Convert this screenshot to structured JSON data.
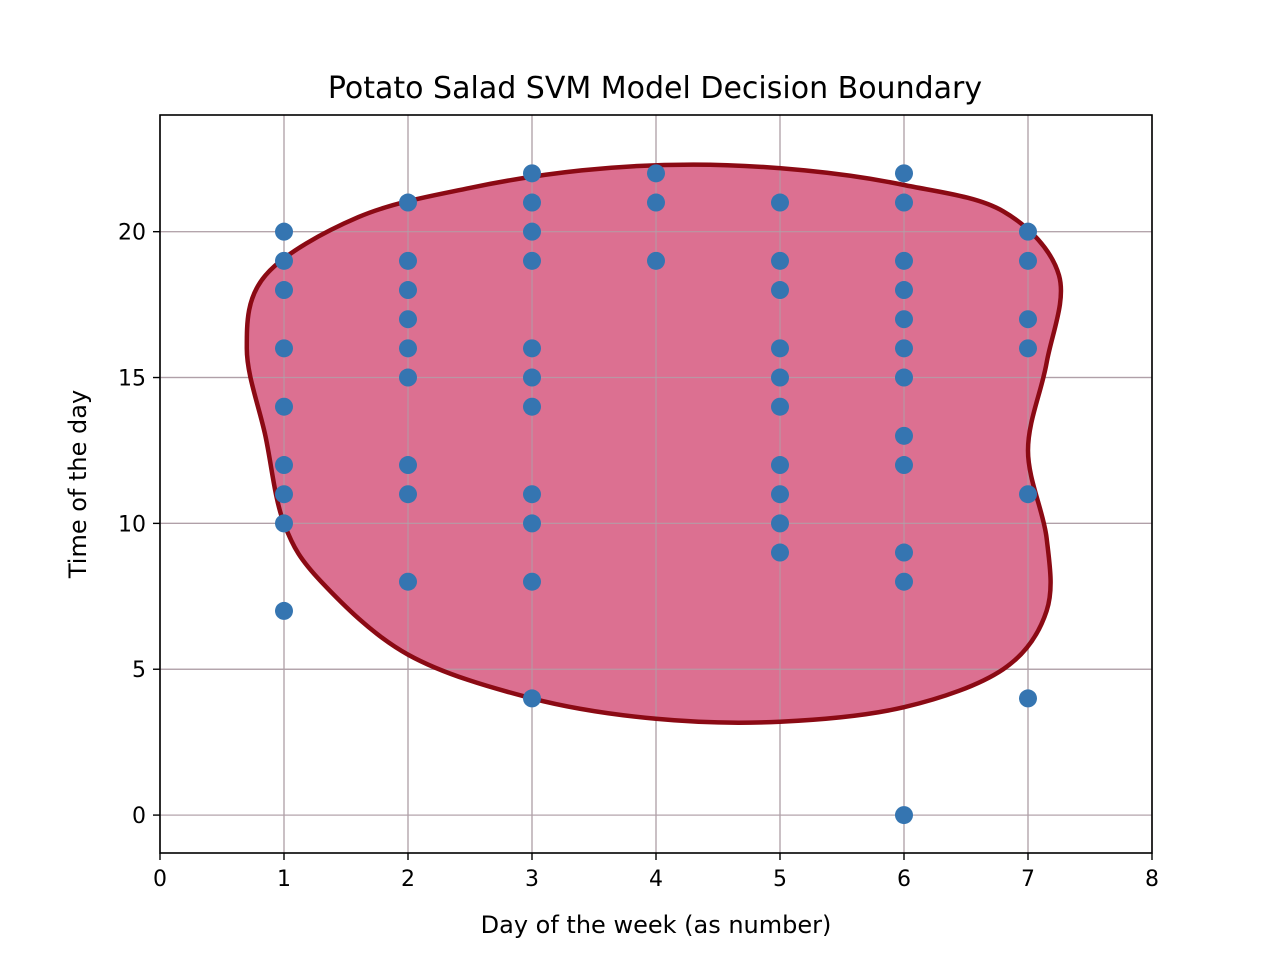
{
  "chart_data": {
    "type": "scatter",
    "title": "Potato Salad SVM Model Decision Boundary",
    "xlabel": "Day of the week (as number)",
    "ylabel": "Time of the day",
    "xlim": [
      0,
      8
    ],
    "ylim": [
      -1.3,
      24
    ],
    "xticks": [
      0,
      1,
      2,
      3,
      4,
      5,
      6,
      7,
      8
    ],
    "yticks": [
      0,
      5,
      10,
      15,
      20
    ],
    "grid": true,
    "colors": {
      "points": "#3575b1",
      "region_fill": "#dc7091",
      "boundary": "#8b0a14",
      "grid": "#b0a0a8"
    },
    "points": [
      {
        "x": 1,
        "y": 20
      },
      {
        "x": 1,
        "y": 19
      },
      {
        "x": 1,
        "y": 18
      },
      {
        "x": 1,
        "y": 16
      },
      {
        "x": 1,
        "y": 14
      },
      {
        "x": 1,
        "y": 12
      },
      {
        "x": 1,
        "y": 11
      },
      {
        "x": 1,
        "y": 10
      },
      {
        "x": 1,
        "y": 7
      },
      {
        "x": 2,
        "y": 21
      },
      {
        "x": 2,
        "y": 19
      },
      {
        "x": 2,
        "y": 18
      },
      {
        "x": 2,
        "y": 17
      },
      {
        "x": 2,
        "y": 16
      },
      {
        "x": 2,
        "y": 15
      },
      {
        "x": 2,
        "y": 12
      },
      {
        "x": 2,
        "y": 11
      },
      {
        "x": 2,
        "y": 8
      },
      {
        "x": 3,
        "y": 22
      },
      {
        "x": 3,
        "y": 21
      },
      {
        "x": 3,
        "y": 20
      },
      {
        "x": 3,
        "y": 19
      },
      {
        "x": 3,
        "y": 16
      },
      {
        "x": 3,
        "y": 15
      },
      {
        "x": 3,
        "y": 14
      },
      {
        "x": 3,
        "y": 11
      },
      {
        "x": 3,
        "y": 10
      },
      {
        "x": 3,
        "y": 8
      },
      {
        "x": 3,
        "y": 4
      },
      {
        "x": 4,
        "y": 22
      },
      {
        "x": 4,
        "y": 21
      },
      {
        "x": 4,
        "y": 19
      },
      {
        "x": 5,
        "y": 21
      },
      {
        "x": 5,
        "y": 19
      },
      {
        "x": 5,
        "y": 18
      },
      {
        "x": 5,
        "y": 16
      },
      {
        "x": 5,
        "y": 15
      },
      {
        "x": 5,
        "y": 14
      },
      {
        "x": 5,
        "y": 12
      },
      {
        "x": 5,
        "y": 11
      },
      {
        "x": 5,
        "y": 10
      },
      {
        "x": 5,
        "y": 9
      },
      {
        "x": 6,
        "y": 22
      },
      {
        "x": 6,
        "y": 21
      },
      {
        "x": 6,
        "y": 19
      },
      {
        "x": 6,
        "y": 18
      },
      {
        "x": 6,
        "y": 17
      },
      {
        "x": 6,
        "y": 16
      },
      {
        "x": 6,
        "y": 15
      },
      {
        "x": 6,
        "y": 13
      },
      {
        "x": 6,
        "y": 12
      },
      {
        "x": 6,
        "y": 9
      },
      {
        "x": 6,
        "y": 8
      },
      {
        "x": 6,
        "y": 0
      },
      {
        "x": 7,
        "y": 20
      },
      {
        "x": 7,
        "y": 19
      },
      {
        "x": 7,
        "y": 17
      },
      {
        "x": 7,
        "y": 16
      },
      {
        "x": 7,
        "y": 11
      },
      {
        "x": 7,
        "y": 4
      }
    ],
    "decision_boundary": [
      [
        4.3,
        22.3
      ],
      [
        5.2,
        22.1
      ],
      [
        6.0,
        21.6
      ],
      [
        6.8,
        20.7
      ],
      [
        7.25,
        18.5
      ],
      [
        7.15,
        15.5
      ],
      [
        7.0,
        12.5
      ],
      [
        7.15,
        9.5
      ],
      [
        7.15,
        7.0
      ],
      [
        6.8,
        5.0
      ],
      [
        6.0,
        3.7
      ],
      [
        5.0,
        3.2
      ],
      [
        4.0,
        3.3
      ],
      [
        3.0,
        4.0
      ],
      [
        2.0,
        5.5
      ],
      [
        1.3,
        8.0
      ],
      [
        1.0,
        10.0
      ],
      [
        0.85,
        13.0
      ],
      [
        0.7,
        16.0
      ],
      [
        0.85,
        18.5
      ],
      [
        1.6,
        20.5
      ],
      [
        2.5,
        21.5
      ],
      [
        3.4,
        22.1
      ]
    ]
  }
}
